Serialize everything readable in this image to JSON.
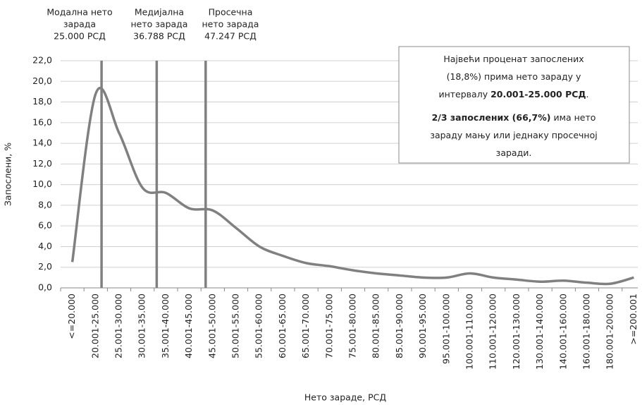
{
  "chart_data": {
    "type": "line",
    "xlabel": "Нето зараде, РСД",
    "ylabel": "Запослени, %",
    "categories": [
      "<=20.000",
      "20.001-25.000",
      "25.001-30.000",
      "30.001-35.000",
      "35.001-40.000",
      "40.001-45.000",
      "45.001-50.000",
      "50.001-55.000",
      "55.001-60.000",
      "60.001-65.000",
      "65.001-70.000",
      "70.001-75.000",
      "75.001-80.000",
      "80.001-85.000",
      "85.001-90.000",
      "90.001-95.000",
      "95.001-100.000",
      "100.001-110.000",
      "110.001-120.000",
      "120.001-130.000",
      "130.001-140.000",
      "140.001-160.000",
      "160.001-180.000",
      "180.001-200.000",
      ">=200.001"
    ],
    "values": [
      2.5,
      18.8,
      15.0,
      9.7,
      9.2,
      7.7,
      7.5,
      5.8,
      4.0,
      3.1,
      2.4,
      2.1,
      1.7,
      1.4,
      1.2,
      1.0,
      1.0,
      1.4,
      1.0,
      0.8,
      0.6,
      0.7,
      0.5,
      0.4,
      1.0
    ],
    "color": "#808080",
    "ylim": [
      0,
      22
    ],
    "yticks": [
      {
        "value": 0,
        "label": "0,0"
      },
      {
        "value": 2,
        "label": "2,0"
      },
      {
        "value": 4,
        "label": "4,0"
      },
      {
        "value": 6,
        "label": "6,0"
      },
      {
        "value": 8,
        "label": "8,0"
      },
      {
        "value": 10,
        "label": "10,0"
      },
      {
        "value": 12,
        "label": "12,0"
      },
      {
        "value": 14,
        "label": "14,0"
      },
      {
        "value": 16,
        "label": "16,0"
      },
      {
        "value": 18,
        "label": "18,0"
      },
      {
        "value": 20,
        "label": "20,0"
      },
      {
        "value": 22,
        "label": "22,0"
      }
    ],
    "grid": true,
    "reference_lines": [
      {
        "lines": [
          "Модална нето",
          "зарада"
        ],
        "value": 25000,
        "value_label": "25.000 РСД"
      },
      {
        "lines": [
          "Медијална",
          "нето зарада"
        ],
        "value": 36788,
        "value_label": "36.788 РСД"
      },
      {
        "lines": [
          "Просечна",
          "нето зарада"
        ],
        "value": 47247,
        "value_label": "47.247 РСД"
      }
    ],
    "annotation_box": {
      "lines": [
        [
          {
            "text": "Највећи проценат запослених"
          }
        ],
        [
          {
            "text": "(18,8%) прима нето зараду у"
          }
        ],
        [
          {
            "text": "интервалу "
          },
          {
            "text": "20.001-25.000 РСД",
            "bold": true
          },
          {
            "text": "."
          }
        ],
        [
          {
            "text": "2/3 запослених (66,7%)",
            "bold": true
          },
          {
            "text": " има нето"
          }
        ],
        [
          {
            "text": "зараду мању или једнаку просечној"
          }
        ],
        [
          {
            "text": "заради."
          }
        ]
      ]
    }
  }
}
